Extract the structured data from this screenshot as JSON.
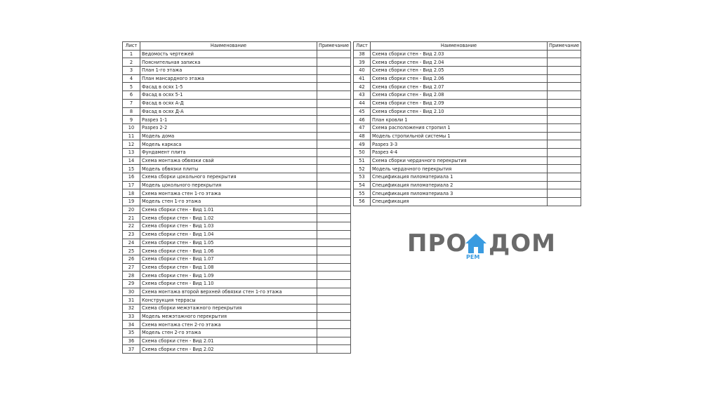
{
  "headers": {
    "sheet": "Лист",
    "name": "Наименование",
    "note": "Примечание"
  },
  "left_rows": [
    [
      "1",
      "Ведомость чертежей"
    ],
    [
      "2",
      "Пояснительная записка"
    ],
    [
      "3",
      "План 1-го этажа"
    ],
    [
      "4",
      "План мансардного этажа"
    ],
    [
      "5",
      "Фасад в осях 1-5"
    ],
    [
      "6",
      "Фасад в осях 5-1"
    ],
    [
      "7",
      "Фасад в осях А-Д"
    ],
    [
      "8",
      "Фасад в осях Д-А"
    ],
    [
      "9",
      "Разрез 1-1"
    ],
    [
      "10",
      "Разрез 2-2"
    ],
    [
      "11",
      "Модель дома"
    ],
    [
      "12",
      "Модель каркаса"
    ],
    [
      "13",
      "Фундамент плита"
    ],
    [
      "14",
      "Схема монтажа обвязки свай"
    ],
    [
      "15",
      "Модель обвязки плиты"
    ],
    [
      "16",
      "Схема сборки цокольного перекрытия"
    ],
    [
      "17",
      "Модель цокольного перекрытия"
    ],
    [
      "18",
      "Схема монтажа стен 1-го этажа"
    ],
    [
      "19",
      "Модель стен 1-го этажа"
    ],
    [
      "20",
      "Схема сборки стен - Вид 1.01"
    ],
    [
      "21",
      "Схема сборки стен - Вид 1.02"
    ],
    [
      "22",
      "Схема сборки стен - Вид 1.03"
    ],
    [
      "23",
      "Схема сборки стен - Вид 1.04"
    ],
    [
      "24",
      "Схема сборки стен - Вид 1.05"
    ],
    [
      "25",
      "Схема сборки стен - Вид 1.06"
    ],
    [
      "26",
      "Схема сборки стен - Вид 1.07"
    ],
    [
      "27",
      "Схема сборки стен - Вид 1.08"
    ],
    [
      "28",
      "Схема сборки стен - Вид 1.09"
    ],
    [
      "29",
      "Схема сборки стен - Вид 1.10"
    ],
    [
      "30",
      "Схема монтажа второй верхней обвязки стен 1-го этажа"
    ],
    [
      "31",
      "Конструкция террасы"
    ],
    [
      "32",
      "Схема сборки межэтажного перекрытия"
    ],
    [
      "33",
      "Модель межэтажного перекрытия"
    ],
    [
      "34",
      "Схема монтажа стен 2-го этажа"
    ],
    [
      "35",
      "Модель стен 2-го этажа"
    ],
    [
      "36",
      "Схема сборки стен - Вид 2.01"
    ],
    [
      "37",
      "Схема сборки стен - Вид 2.02"
    ]
  ],
  "right_rows": [
    [
      "38",
      "Схема сборки стен - Вид 2.03"
    ],
    [
      "39",
      "Схема сборки стен - Вид 2.04"
    ],
    [
      "40",
      "Схема сборки стен - Вид 2.05"
    ],
    [
      "41",
      "Схема сборки стен - Вид 2.06"
    ],
    [
      "42",
      "Схема сборки стен - Вид 2.07"
    ],
    [
      "43",
      "Схема сборки стен - Вид 2.08"
    ],
    [
      "44",
      "Схема сборки стен - Вид 2.09"
    ],
    [
      "45",
      "Схема сборки стен - Вид 2.10"
    ],
    [
      "46",
      "План кровли 1"
    ],
    [
      "47",
      "Схема расположения стропил 1"
    ],
    [
      "48",
      "Модель стропильной системы 1"
    ],
    [
      "49",
      "Разрез 3-3"
    ],
    [
      "50",
      "Разрез 4-4"
    ],
    [
      "51",
      "Схема сборки чердачного перекрытия"
    ],
    [
      "52",
      "Модель чердачного перекрытия"
    ],
    [
      "53",
      "Спецификация пиломатериала 1"
    ],
    [
      "54",
      "Спецификация пиломатериала 2"
    ],
    [
      "55",
      "Спецификация пиломатериала 3"
    ],
    [
      "56",
      "Спецификация"
    ]
  ],
  "watermark": {
    "left": "ПРО",
    "right": "ДОМ",
    "sub": "РЕМ",
    "house_color": "#3a9be0"
  }
}
